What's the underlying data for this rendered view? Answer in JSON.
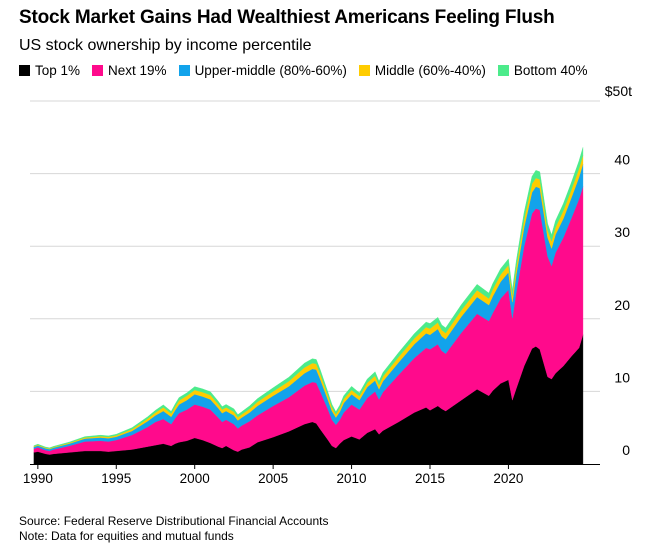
{
  "chart_data": {
    "type": "area",
    "stacked": true,
    "title": "Stock Market Gains Had Wealthiest Americans Feeling Flush",
    "subtitle": "US stock ownership by income percentile",
    "unit_label": "$50t",
    "ylim": [
      0,
      50
    ],
    "xlim": [
      1989.5,
      2025.2
    ],
    "yticks": [
      "0",
      "10",
      "20",
      "30",
      "40"
    ],
    "ytick_values": [
      0,
      10,
      20,
      30,
      40
    ],
    "xticks": [
      "1990",
      "1995",
      "2000",
      "2005",
      "2010",
      "2015",
      "2020"
    ],
    "xtick_values": [
      1990,
      1995,
      2000,
      2005,
      2010,
      2015,
      2020
    ],
    "x": [
      1989.75,
      1990.0,
      1990.5,
      1990.75,
      1991.0,
      1992.0,
      1993.0,
      1994.0,
      1994.5,
      1995.0,
      1996.0,
      1997.0,
      1997.5,
      1998.0,
      1998.5,
      1998.75,
      1999.0,
      1999.5,
      2000.0,
      2000.5,
      2001.0,
      2001.5,
      2001.75,
      2002.0,
      2002.5,
      2002.75,
      2003.0,
      2003.5,
      2004.0,
      2005.0,
      2006.0,
      2007.0,
      2007.5,
      2007.75,
      2008.0,
      2008.5,
      2008.75,
      2009.0,
      2009.25,
      2009.5,
      2010.0,
      2010.5,
      2011.0,
      2011.5,
      2011.75,
      2012.0,
      2013.0,
      2014.0,
      2014.75,
      2015.0,
      2015.5,
      2015.75,
      2016.0,
      2017.0,
      2018.0,
      2018.75,
      2019.0,
      2019.5,
      2020.0,
      2020.25,
      2020.5,
      2021.0,
      2021.5,
      2021.75,
      2022.0,
      2022.5,
      2022.75,
      2023.0,
      2023.5,
      2024.0,
      2024.5,
      2024.75
    ],
    "series": [
      {
        "name": "Top 1%",
        "color": "#000000",
        "values": [
          1.6,
          1.7,
          1.4,
          1.3,
          1.4,
          1.6,
          1.8,
          1.8,
          1.7,
          1.8,
          2.0,
          2.4,
          2.6,
          2.8,
          2.5,
          2.8,
          3.0,
          3.2,
          3.6,
          3.3,
          2.9,
          2.4,
          2.2,
          2.5,
          1.9,
          1.7,
          2.0,
          2.3,
          3.0,
          3.7,
          4.5,
          5.5,
          5.8,
          5.6,
          4.8,
          3.3,
          2.5,
          2.2,
          2.8,
          3.3,
          3.8,
          3.4,
          4.3,
          4.8,
          4.1,
          4.6,
          5.8,
          7.1,
          7.8,
          7.4,
          8.0,
          7.6,
          7.3,
          8.8,
          10.3,
          9.4,
          10.1,
          11.1,
          11.6,
          8.8,
          10.4,
          13.5,
          15.9,
          16.2,
          15.8,
          12.0,
          11.7,
          12.5,
          13.5,
          14.8,
          16.0,
          17.8
        ]
      },
      {
        "name": "Next 19%",
        "color": "#ff0a8c",
        "values": [
          0.5,
          0.6,
          0.5,
          0.5,
          0.6,
          0.9,
          1.3,
          1.4,
          1.4,
          1.5,
          2.0,
          2.7,
          3.2,
          3.4,
          3.0,
          3.5,
          4.0,
          4.3,
          4.6,
          4.6,
          4.6,
          4.0,
          3.6,
          3.6,
          3.6,
          3.2,
          3.3,
          3.6,
          3.7,
          4.3,
          4.7,
          5.3,
          5.5,
          5.6,
          5.2,
          4.2,
          3.6,
          3.2,
          3.3,
          3.8,
          4.4,
          4.1,
          4.8,
          5.2,
          4.8,
          5.3,
          6.5,
          7.5,
          8.2,
          8.4,
          8.5,
          8.0,
          7.9,
          9.3,
          10.4,
          10.3,
          10.7,
          11.7,
          12.4,
          11.3,
          13.3,
          16.5,
          18.6,
          19.0,
          19.2,
          16.6,
          15.6,
          16.6,
          17.7,
          19.0,
          20.5,
          20.4
        ]
      },
      {
        "name": "Upper-middle (80%-60%)",
        "color": "#12a3eb",
        "values": [
          0.25,
          0.25,
          0.25,
          0.25,
          0.25,
          0.3,
          0.4,
          0.45,
          0.45,
          0.45,
          0.55,
          0.8,
          0.9,
          1.1,
          1.0,
          1.1,
          1.2,
          1.3,
          1.4,
          1.4,
          1.4,
          1.3,
          1.2,
          1.2,
          1.2,
          1.1,
          1.1,
          1.2,
          1.3,
          1.4,
          1.5,
          1.7,
          1.8,
          1.8,
          1.7,
          1.3,
          1.2,
          1.0,
          1.1,
          1.3,
          1.4,
          1.3,
          1.5,
          1.5,
          1.4,
          1.5,
          1.7,
          1.9,
          2.0,
          2.0,
          2.1,
          2.0,
          2.0,
          2.2,
          2.3,
          2.2,
          2.3,
          2.3,
          2.4,
          2.2,
          2.4,
          2.6,
          2.9,
          3.0,
          3.0,
          2.6,
          2.4,
          2.5,
          2.6,
          2.8,
          3.0,
          3.1
        ]
      },
      {
        "name": "Middle (60%-40%)",
        "color": "#ffcc00",
        "values": [
          0.1,
          0.1,
          0.1,
          0.1,
          0.1,
          0.12,
          0.15,
          0.18,
          0.18,
          0.2,
          0.25,
          0.35,
          0.4,
          0.5,
          0.45,
          0.5,
          0.55,
          0.6,
          0.6,
          0.6,
          0.6,
          0.55,
          0.5,
          0.5,
          0.5,
          0.45,
          0.45,
          0.5,
          0.55,
          0.6,
          0.7,
          0.8,
          0.8,
          0.8,
          0.75,
          0.6,
          0.5,
          0.45,
          0.5,
          0.55,
          0.6,
          0.55,
          0.6,
          0.65,
          0.6,
          0.65,
          0.75,
          0.8,
          0.85,
          0.85,
          0.9,
          0.85,
          0.85,
          0.9,
          0.95,
          0.9,
          0.95,
          1.0,
          1.0,
          0.9,
          1.0,
          1.1,
          1.2,
          1.2,
          1.2,
          1.0,
          1.0,
          1.0,
          1.1,
          1.1,
          1.2,
          1.2
        ]
      },
      {
        "name": "Bottom 40%",
        "color": "#4ceb8b",
        "values": [
          0.08,
          0.08,
          0.08,
          0.08,
          0.08,
          0.1,
          0.12,
          0.14,
          0.14,
          0.15,
          0.2,
          0.25,
          0.3,
          0.35,
          0.3,
          0.35,
          0.4,
          0.4,
          0.45,
          0.45,
          0.45,
          0.4,
          0.4,
          0.4,
          0.4,
          0.35,
          0.35,
          0.4,
          0.45,
          0.5,
          0.55,
          0.6,
          0.6,
          0.6,
          0.55,
          0.45,
          0.4,
          0.35,
          0.4,
          0.45,
          0.5,
          0.45,
          0.5,
          0.55,
          0.5,
          0.55,
          0.6,
          0.65,
          0.7,
          0.7,
          0.7,
          0.7,
          0.7,
          0.75,
          0.8,
          0.75,
          0.8,
          0.8,
          0.85,
          0.75,
          0.85,
          0.95,
          1.0,
          1.05,
          1.05,
          0.9,
          0.85,
          0.9,
          0.95,
          1.0,
          1.05,
          1.1
        ]
      }
    ],
    "source_lines": [
      "Source: Federal Reserve Distributional Financial Accounts",
      "Note: Data for equities and mutual funds"
    ]
  }
}
